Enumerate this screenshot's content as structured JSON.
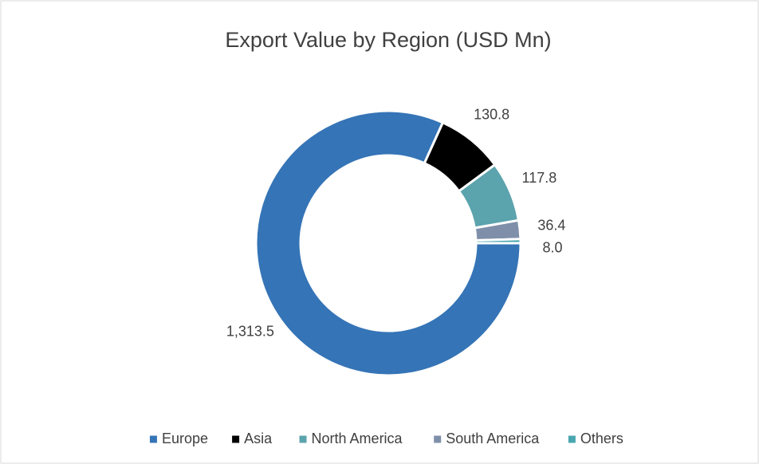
{
  "chart_data": {
    "type": "donut",
    "title": "Export Value by Region (USD Mn)",
    "categories": [
      "Europe",
      "Asia",
      "North America",
      "South America",
      "Others"
    ],
    "values": [
      1313.5,
      130.8,
      117.8,
      36.4,
      8.0
    ],
    "value_labels": [
      "1,313.5",
      "130.8",
      "117.8",
      "36.4",
      "8.0"
    ],
    "colors": [
      "#3574b6",
      "#000000",
      "#5ba3ad",
      "#7f8fa9",
      "#4aa6b0"
    ],
    "legend": "bottom"
  }
}
